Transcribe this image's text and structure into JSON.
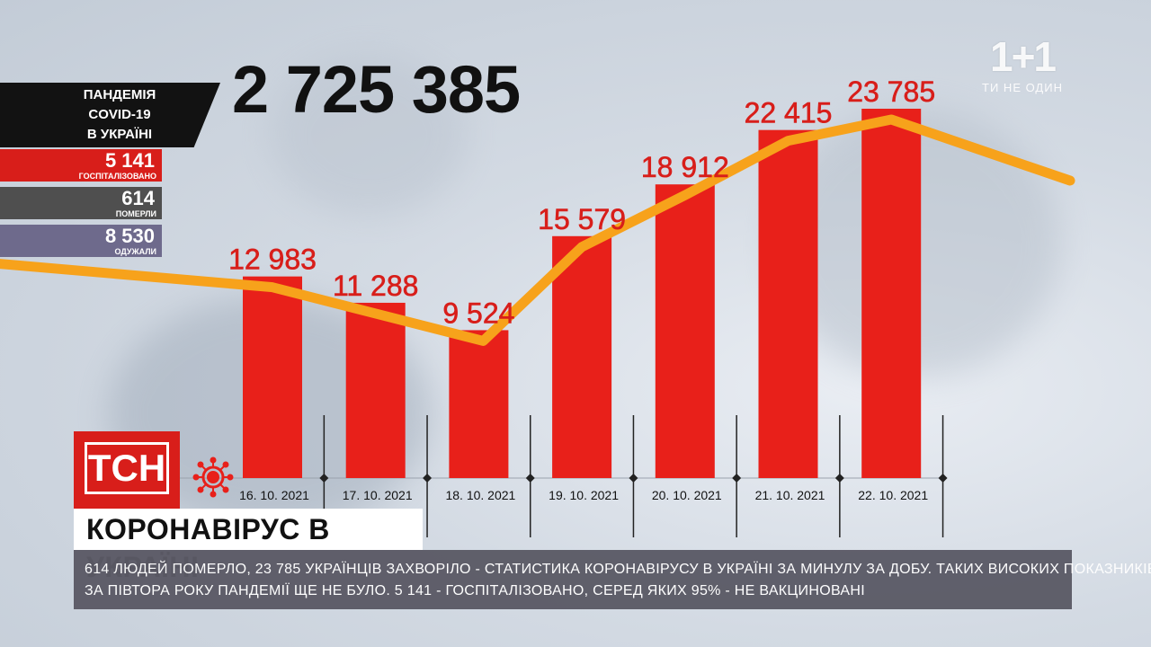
{
  "logo": {
    "mark": "1+1",
    "tagline": "ТИ НЕ ОДИН"
  },
  "total": "2 725 385",
  "panel": {
    "title_lines": [
      "ПАНДЕМІЯ",
      "COVID-19",
      "В УКРАЇНІ"
    ],
    "stats": [
      {
        "value": "5 141",
        "label": "ГОСПІТАЛІЗОВАНО",
        "color": "#d81e1a"
      },
      {
        "value": "614",
        "label": "ПОМЕРЛИ",
        "color": "#4f4f4f"
      },
      {
        "value": "8 530",
        "label": "ОДУЖАЛИ",
        "color": "#6e6a8c"
      }
    ]
  },
  "badge": {
    "text": "ТСН",
    "color": "#d81e1a"
  },
  "headline": "КОРОНАВІРУС В УКРАЇНІ",
  "ticker": {
    "line1": "614 ЛЮДЕЙ ПОМЕРЛО, 23 785 УКРАЇНЦІВ ЗАХВОРІЛО - СТАТИСТИКА КОРОНАВІРУСУ В УКРАЇНІ ЗА МИНУЛУ ЗА ДОБУ. ТАКИХ ВИСОКИХ ПОКАЗНИКІВ",
    "line2": "ЗА ПІВТОРА РОКУ ПАНДЕМІЇ ЩЕ НЕ БУЛО.  5 141 - ГОСПІТАЛІЗОВАНО, СЕРЕД ЯКИХ 95% - НЕ ВАКЦИНОВАНІ"
  },
  "chart_data": {
    "type": "bar",
    "categories": [
      "16. 10. 2021",
      "17. 10. 2021",
      "18. 10. 2021",
      "19. 10. 2021",
      "20. 10. 2021",
      "21. 10. 2021",
      "22. 10. 2021"
    ],
    "values": [
      12983,
      11288,
      9524,
      15579,
      18912,
      22415,
      23785
    ],
    "value_labels": [
      "12 983",
      "11 288",
      "9 524",
      "15 579",
      "18 912",
      "22 415",
      "23 785"
    ],
    "ylim": [
      0,
      25000
    ],
    "bar_color": "#e8201a",
    "trend_color": "#f7a21b",
    "label_color": "#d81e1a",
    "trend_line": true,
    "grid": false
  }
}
